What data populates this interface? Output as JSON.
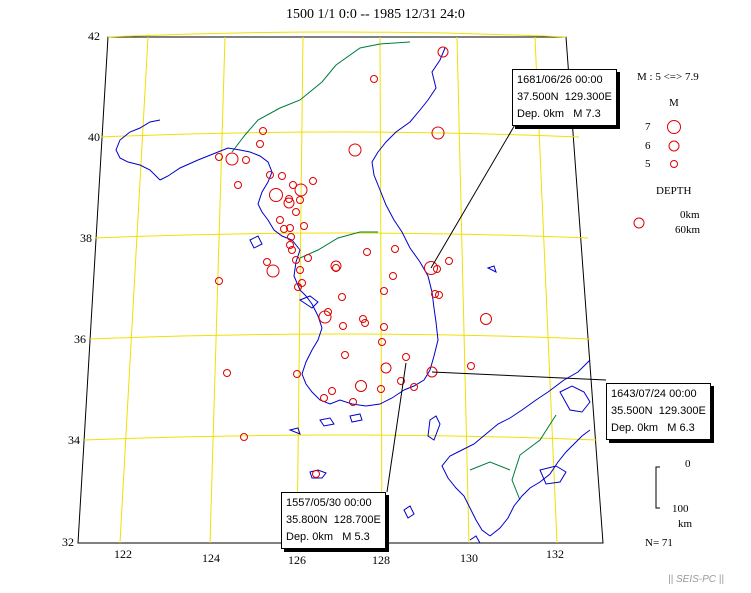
{
  "title": "1500 1/1 0:0 -- 1985 12/31 24:0",
  "lat_labels": [
    "42",
    "40",
    "38",
    "36",
    "34",
    "32"
  ],
  "lon_labels": [
    "122",
    "124",
    "126",
    "128",
    "130",
    "132"
  ],
  "events": [
    {
      "date": "1681/06/26 00:00",
      "lat": "37.500N",
      "lon": "129.300E",
      "depth": "Dep. 0km",
      "mag": "M 7.3"
    },
    {
      "date": "1643/07/24 00:00",
      "lat": "35.500N",
      "lon": "129.300E",
      "depth": "Dep. 0km",
      "mag": "M 6.3"
    },
    {
      "date": "1557/05/30 00:00",
      "lat": "35.800N",
      "lon": "128.700E",
      "depth": "Dep. 0km",
      "mag": "M 5.3"
    }
  ],
  "legend": {
    "mag_range": "M : 5 <=> 7.9",
    "mag_header": "M",
    "mag_levels": [
      "7",
      "6",
      "5"
    ],
    "depth_header": "DEPTH",
    "depth_min": "0km",
    "depth_max": "60km",
    "scale_top": "0",
    "scale_bottom": "100",
    "scale_unit": "km",
    "count": "N= 71"
  },
  "footer": "|| SEIS-PC ||",
  "colors": {
    "grid": "#f0e000",
    "coast": "#0000cc",
    "border": "#007a3d",
    "quake": "#e00000"
  }
}
